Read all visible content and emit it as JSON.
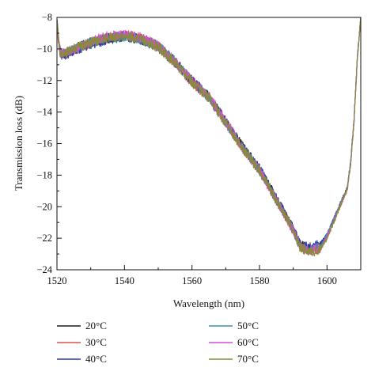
{
  "chart_data": {
    "type": "line",
    "title": "",
    "xlabel": "Wavelength (nm)",
    "ylabel": "Transmission loss (dB)",
    "xlim": [
      1520,
      1610
    ],
    "ylim": [
      -24,
      -8
    ],
    "xticks": [
      1520,
      1540,
      1560,
      1580,
      1600
    ],
    "xtick_labels": [
      "1520",
      "1540",
      "1560",
      "1580",
      "1600"
    ],
    "yticks": [
      -24,
      -22,
      -20,
      -18,
      -16,
      -14,
      -12,
      -10,
      -8
    ],
    "ytick_labels": [
      "−24",
      "−22",
      "−20",
      "−18",
      "−16",
      "−14",
      "−12",
      "−10",
      "−8"
    ],
    "grid": false,
    "legend_position": "bottom",
    "x": [
      1520,
      1520.5,
      1521,
      1522,
      1525,
      1530,
      1535,
      1540,
      1545,
      1550,
      1555,
      1560,
      1565,
      1570,
      1575,
      1580,
      1585,
      1590,
      1592,
      1595,
      1598,
      1600,
      1602,
      1604,
      1606,
      1607,
      1608,
      1609,
      1610
    ],
    "series": [
      {
        "name": "20°C",
        "color": "#1a1a1a",
        "values": [
          -8.2,
          -9.5,
          -10.2,
          -10.3,
          -10.0,
          -9.6,
          -9.3,
          -9.2,
          -9.4,
          -9.8,
          -10.8,
          -12.0,
          -13.0,
          -14.6,
          -16.2,
          -17.6,
          -19.5,
          -21.4,
          -22.4,
          -22.7,
          -22.5,
          -21.8,
          -20.8,
          -19.8,
          -18.8,
          -17.2,
          -14.5,
          -10.5,
          -8.0
        ]
      },
      {
        "name": "30°C",
        "color": "#d9534f",
        "values": [
          -8.2,
          -9.6,
          -10.3,
          -10.3,
          -10.1,
          -9.6,
          -9.3,
          -9.1,
          -9.3,
          -9.8,
          -10.9,
          -12.1,
          -13.1,
          -14.7,
          -16.3,
          -17.7,
          -19.6,
          -21.5,
          -22.5,
          -22.8,
          -22.6,
          -21.9,
          -20.9,
          -19.9,
          -18.9,
          -17.3,
          -14.6,
          -10.6,
          -8.0
        ]
      },
      {
        "name": "40°C",
        "color": "#2b3a9e",
        "values": [
          -8.2,
          -9.5,
          -10.3,
          -10.4,
          -10.1,
          -9.7,
          -9.4,
          -9.2,
          -9.4,
          -9.9,
          -10.9,
          -12.0,
          -13.0,
          -14.6,
          -16.2,
          -17.6,
          -19.5,
          -21.4,
          -22.4,
          -22.6,
          -22.4,
          -21.8,
          -20.8,
          -19.8,
          -18.8,
          -17.2,
          -14.5,
          -10.5,
          -8.0
        ]
      },
      {
        "name": "50°C",
        "color": "#3b8ea5",
        "values": [
          -8.2,
          -9.5,
          -10.2,
          -10.3,
          -10.0,
          -9.6,
          -9.3,
          -9.2,
          -9.4,
          -9.8,
          -10.8,
          -12.0,
          -13.1,
          -14.7,
          -16.3,
          -17.7,
          -19.6,
          -21.5,
          -22.5,
          -22.7,
          -22.5,
          -21.8,
          -20.8,
          -19.8,
          -18.8,
          -17.2,
          -14.5,
          -10.5,
          -8.0
        ]
      },
      {
        "name": "60°C",
        "color": "#d64fd6",
        "values": [
          -8.2,
          -9.6,
          -10.2,
          -10.3,
          -10.0,
          -9.5,
          -9.2,
          -9.1,
          -9.3,
          -9.8,
          -10.8,
          -12.0,
          -13.0,
          -14.6,
          -16.3,
          -17.7,
          -19.6,
          -21.5,
          -22.5,
          -22.8,
          -22.6,
          -21.9,
          -20.9,
          -19.9,
          -18.9,
          -17.3,
          -14.6,
          -10.6,
          -8.0
        ]
      },
      {
        "name": "70°C",
        "color": "#8a8a3a",
        "values": [
          -8.2,
          -9.5,
          -10.3,
          -10.3,
          -10.0,
          -9.6,
          -9.3,
          -9.2,
          -9.4,
          -9.9,
          -10.9,
          -12.1,
          -13.1,
          -14.7,
          -16.3,
          -17.7,
          -19.6,
          -21.5,
          -22.6,
          -22.9,
          -22.7,
          -22.0,
          -21.0,
          -19.9,
          -18.9,
          -17.3,
          -14.6,
          -10.6,
          -8.0
        ]
      }
    ]
  }
}
